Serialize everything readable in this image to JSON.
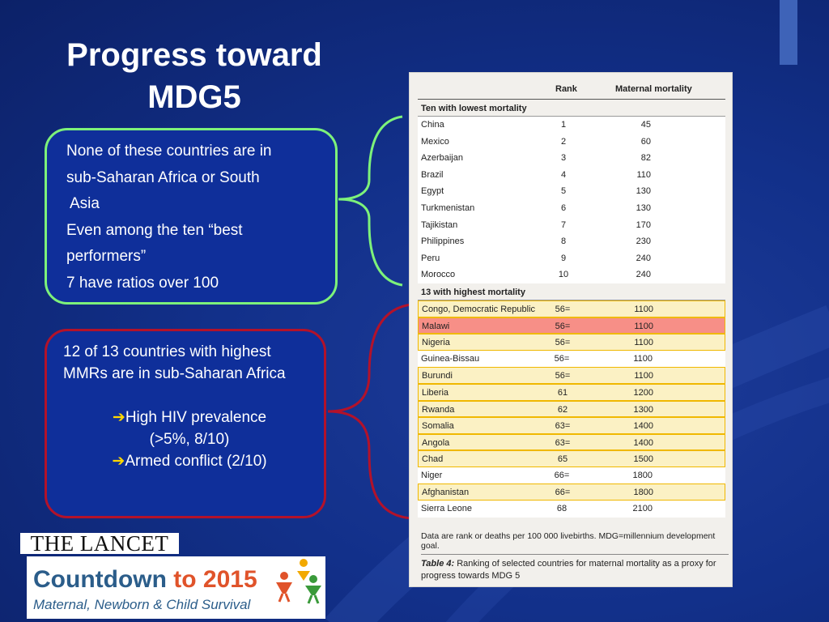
{
  "slide": {
    "title_line1": "Progress toward",
    "title_line2": "MDG5"
  },
  "green_box": {
    "lines": [
      "None of these countries are in",
      "sub-Saharan Africa or South",
      " Asia",
      "Even among the ten “best",
      "performers”",
      "7 have ratios over 100"
    ]
  },
  "red_box": {
    "para1": "12 of 13 countries with highest MMRs are in sub-Saharan Africa",
    "bullet1_a": "High HIV prevalence",
    "bullet1_b": "(>5%, 8/10)",
    "bullet2": "Armed conflict (2/10)"
  },
  "table": {
    "col_rank": "Rank",
    "col_mortality": "Maternal mortality",
    "section1": "Ten with lowest mortality",
    "lowest": [
      {
        "country": "China",
        "rank": "1",
        "mortality": "45"
      },
      {
        "country": "Mexico",
        "rank": "2",
        "mortality": "60"
      },
      {
        "country": "Azerbaijan",
        "rank": "3",
        "mortality": "82"
      },
      {
        "country": "Brazil",
        "rank": "4",
        "mortality": "110"
      },
      {
        "country": "Egypt",
        "rank": "5",
        "mortality": "130"
      },
      {
        "country": "Turkmenistan",
        "rank": "6",
        "mortality": "130"
      },
      {
        "country": "Tajikistan",
        "rank": "7",
        "mortality": "170"
      },
      {
        "country": "Philippines",
        "rank": "8",
        "mortality": "230"
      },
      {
        "country": "Peru",
        "rank": "9",
        "mortality": "240"
      },
      {
        "country": "Morocco",
        "rank": "10",
        "mortality": "240"
      }
    ],
    "section2": "13 with highest mortality",
    "highest": [
      {
        "country": "Congo, Democratic Republic",
        "rank": "56=",
        "mortality": "1100",
        "style": "yellow"
      },
      {
        "country": "Malawi",
        "rank": "56=",
        "mortality": "1100",
        "style": "red"
      },
      {
        "country": "Nigeria",
        "rank": "56=",
        "mortality": "1100",
        "style": "yellow"
      },
      {
        "country": "Guinea-Bissau",
        "rank": "56=",
        "mortality": "1100",
        "style": "white"
      },
      {
        "country": "Burundi",
        "rank": "56=",
        "mortality": "1100",
        "style": "yellow"
      },
      {
        "country": "Liberia",
        "rank": "61",
        "mortality": "1200",
        "style": "yellow"
      },
      {
        "country": "Rwanda",
        "rank": "62",
        "mortality": "1300",
        "style": "yellow"
      },
      {
        "country": "Somalia",
        "rank": "63=",
        "mortality": "1400",
        "style": "yellow"
      },
      {
        "country": "Angola",
        "rank": "63=",
        "mortality": "1400",
        "style": "yellow"
      },
      {
        "country": "Chad",
        "rank": "65",
        "mortality": "1500",
        "style": "yellow"
      },
      {
        "country": "Niger",
        "rank": "66=",
        "mortality": "1800",
        "style": "white"
      },
      {
        "country": "Afghanistan",
        "rank": "66=",
        "mortality": "1800",
        "style": "yellow"
      },
      {
        "country": "Sierra Leone",
        "rank": "68",
        "mortality": "2100",
        "style": "white"
      }
    ],
    "footnote": "Data are rank or deaths per 100 000 livebirths. MDG=millennium development goal.",
    "caption_label": "Table 4:",
    "caption_text": " Ranking of selected countries for maternal mortality as a proxy for progress towards MDG 5"
  },
  "logos": {
    "lancet": "THE LANCET",
    "countdown_a": "Countdown ",
    "countdown_b": "to 2015",
    "countdown_sub": "Maternal, Newborn & Child Survival"
  },
  "colors": {
    "green_outline": "#7df27a",
    "red_outline": "#b3122a",
    "highlight_yellow": "#fbf1c4",
    "highlight_red": "#f78f87"
  }
}
